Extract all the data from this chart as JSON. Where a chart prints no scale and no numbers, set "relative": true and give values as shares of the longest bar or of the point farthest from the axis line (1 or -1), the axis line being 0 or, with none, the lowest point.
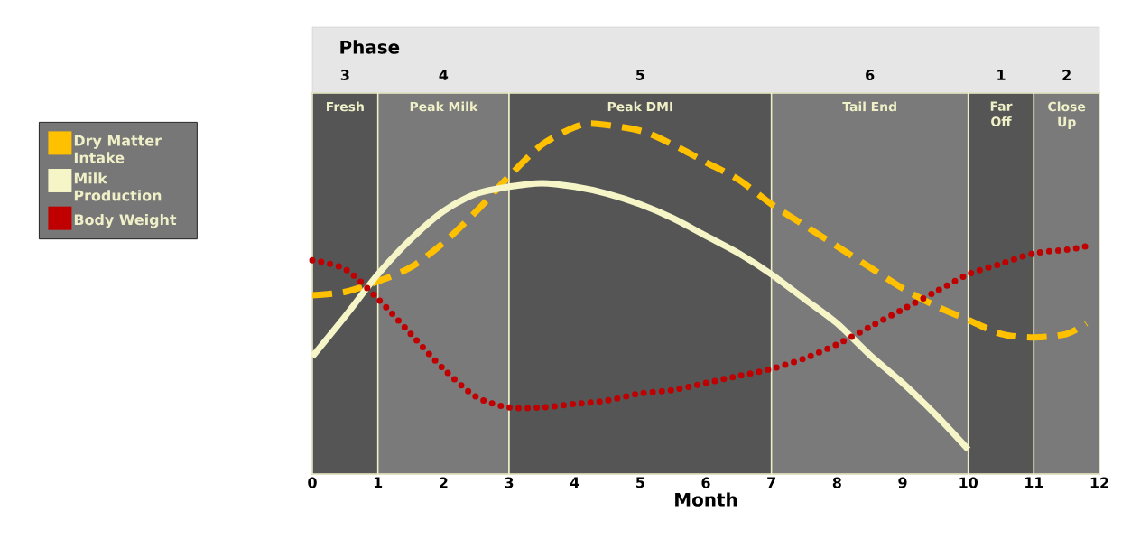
{
  "chart_data": {
    "type": "line",
    "relative": true,
    "xlabel": "Month",
    "xlim": [
      0,
      12
    ],
    "xticks": [
      0,
      1,
      2,
      3,
      4,
      5,
      6,
      7,
      8,
      9,
      10,
      11,
      12
    ],
    "annotations": [
      "Phase",
      "3",
      "4",
      "5",
      "6",
      "1",
      "2"
    ],
    "legend": "left",
    "series": [
      {
        "name": "Dry Matter Intake",
        "color": "#ffc000",
        "line_style": "dashed",
        "x": [
          0,
          0.5,
          1,
          1.5,
          2,
          2.5,
          3,
          3.5,
          4,
          4.3,
          5,
          5.5,
          6,
          6.5,
          7,
          7.5,
          8,
          8.5,
          9,
          9.5,
          10,
          10.5,
          11,
          11.5,
          11.8
        ],
        "values": [
          0.51,
          0.52,
          0.55,
          0.59,
          0.66,
          0.75,
          0.85,
          0.94,
          0.99,
          1.0,
          0.98,
          0.94,
          0.89,
          0.84,
          0.77,
          0.71,
          0.65,
          0.59,
          0.53,
          0.48,
          0.44,
          0.4,
          0.39,
          0.4,
          0.43
        ]
      },
      {
        "name": "Milk Production",
        "color": "#f5f5c8",
        "line_style": "solid",
        "x": [
          0,
          0.5,
          1,
          1.5,
          2,
          2.5,
          3,
          3.5,
          4,
          4.5,
          5,
          5.5,
          6,
          6.5,
          7,
          7.5,
          8,
          8.5,
          9,
          9.5,
          10
        ],
        "values": [
          0.335,
          0.45,
          0.57,
          0.67,
          0.75,
          0.8,
          0.82,
          0.83,
          0.82,
          0.8,
          0.77,
          0.73,
          0.68,
          0.63,
          0.57,
          0.5,
          0.43,
          0.34,
          0.26,
          0.17,
          0.07
        ]
      },
      {
        "name": "Body Weight",
        "color": "#c00000",
        "line_style": "dotted",
        "x": [
          0,
          0.5,
          1,
          1.5,
          2,
          2.5,
          3,
          3.5,
          4,
          4.5,
          5,
          5.5,
          6,
          6.5,
          7,
          7.5,
          8,
          8.5,
          9,
          9.5,
          10,
          10.5,
          11,
          11.5,
          11.8
        ],
        "values": [
          0.61,
          0.585,
          0.5,
          0.4,
          0.3,
          0.22,
          0.19,
          0.19,
          0.2,
          0.21,
          0.23,
          0.24,
          0.26,
          0.28,
          0.3,
          0.33,
          0.37,
          0.42,
          0.47,
          0.52,
          0.57,
          0.6,
          0.63,
          0.64,
          0.65
        ]
      }
    ],
    "bands": [
      {
        "axis": "x",
        "from": 0,
        "to": 1,
        "label": "Fresh",
        "color": "#555555"
      },
      {
        "axis": "x",
        "from": 1,
        "to": 3,
        "label": "Peak Milk",
        "color": "#7a7a7a"
      },
      {
        "axis": "x",
        "from": 3,
        "to": 7,
        "label": "Peak DMI",
        "color": "#555555"
      },
      {
        "axis": "x",
        "from": 7,
        "to": 10,
        "label": "Tail End",
        "color": "#7a7a7a"
      },
      {
        "axis": "x",
        "from": 10,
        "to": 11,
        "label": "Far Off",
        "color": "#555555"
      },
      {
        "axis": "x",
        "from": 11,
        "to": 12,
        "label": "Close Up",
        "color": "#7a7a7a"
      }
    ]
  }
}
